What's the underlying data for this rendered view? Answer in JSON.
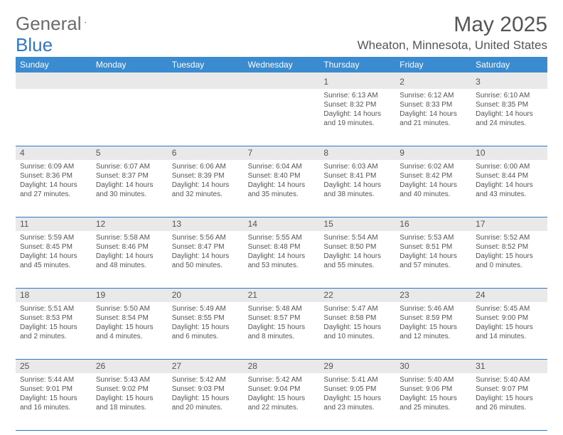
{
  "logo": {
    "text_general": "General",
    "text_blue": "Blue"
  },
  "title": "May 2025",
  "location": "Wheaton, Minnesota, United States",
  "colors": {
    "header_bg": "#3b8bd1",
    "header_text": "#ffffff",
    "daynum_bg": "#e9e9e9",
    "border_line": "#2f78c2",
    "body_text": "#555555"
  },
  "weekdays": [
    "Sunday",
    "Monday",
    "Tuesday",
    "Wednesday",
    "Thursday",
    "Friday",
    "Saturday"
  ],
  "weeks": [
    [
      {
        "n": "",
        "sr": "",
        "ss": "",
        "dl": ""
      },
      {
        "n": "",
        "sr": "",
        "ss": "",
        "dl": ""
      },
      {
        "n": "",
        "sr": "",
        "ss": "",
        "dl": ""
      },
      {
        "n": "",
        "sr": "",
        "ss": "",
        "dl": ""
      },
      {
        "n": "1",
        "sr": "Sunrise: 6:13 AM",
        "ss": "Sunset: 8:32 PM",
        "dl": "Daylight: 14 hours and 19 minutes."
      },
      {
        "n": "2",
        "sr": "Sunrise: 6:12 AM",
        "ss": "Sunset: 8:33 PM",
        "dl": "Daylight: 14 hours and 21 minutes."
      },
      {
        "n": "3",
        "sr": "Sunrise: 6:10 AM",
        "ss": "Sunset: 8:35 PM",
        "dl": "Daylight: 14 hours and 24 minutes."
      }
    ],
    [
      {
        "n": "4",
        "sr": "Sunrise: 6:09 AM",
        "ss": "Sunset: 8:36 PM",
        "dl": "Daylight: 14 hours and 27 minutes."
      },
      {
        "n": "5",
        "sr": "Sunrise: 6:07 AM",
        "ss": "Sunset: 8:37 PM",
        "dl": "Daylight: 14 hours and 30 minutes."
      },
      {
        "n": "6",
        "sr": "Sunrise: 6:06 AM",
        "ss": "Sunset: 8:39 PM",
        "dl": "Daylight: 14 hours and 32 minutes."
      },
      {
        "n": "7",
        "sr": "Sunrise: 6:04 AM",
        "ss": "Sunset: 8:40 PM",
        "dl": "Daylight: 14 hours and 35 minutes."
      },
      {
        "n": "8",
        "sr": "Sunrise: 6:03 AM",
        "ss": "Sunset: 8:41 PM",
        "dl": "Daylight: 14 hours and 38 minutes."
      },
      {
        "n": "9",
        "sr": "Sunrise: 6:02 AM",
        "ss": "Sunset: 8:42 PM",
        "dl": "Daylight: 14 hours and 40 minutes."
      },
      {
        "n": "10",
        "sr": "Sunrise: 6:00 AM",
        "ss": "Sunset: 8:44 PM",
        "dl": "Daylight: 14 hours and 43 minutes."
      }
    ],
    [
      {
        "n": "11",
        "sr": "Sunrise: 5:59 AM",
        "ss": "Sunset: 8:45 PM",
        "dl": "Daylight: 14 hours and 45 minutes."
      },
      {
        "n": "12",
        "sr": "Sunrise: 5:58 AM",
        "ss": "Sunset: 8:46 PM",
        "dl": "Daylight: 14 hours and 48 minutes."
      },
      {
        "n": "13",
        "sr": "Sunrise: 5:56 AM",
        "ss": "Sunset: 8:47 PM",
        "dl": "Daylight: 14 hours and 50 minutes."
      },
      {
        "n": "14",
        "sr": "Sunrise: 5:55 AM",
        "ss": "Sunset: 8:48 PM",
        "dl": "Daylight: 14 hours and 53 minutes."
      },
      {
        "n": "15",
        "sr": "Sunrise: 5:54 AM",
        "ss": "Sunset: 8:50 PM",
        "dl": "Daylight: 14 hours and 55 minutes."
      },
      {
        "n": "16",
        "sr": "Sunrise: 5:53 AM",
        "ss": "Sunset: 8:51 PM",
        "dl": "Daylight: 14 hours and 57 minutes."
      },
      {
        "n": "17",
        "sr": "Sunrise: 5:52 AM",
        "ss": "Sunset: 8:52 PM",
        "dl": "Daylight: 15 hours and 0 minutes."
      }
    ],
    [
      {
        "n": "18",
        "sr": "Sunrise: 5:51 AM",
        "ss": "Sunset: 8:53 PM",
        "dl": "Daylight: 15 hours and 2 minutes."
      },
      {
        "n": "19",
        "sr": "Sunrise: 5:50 AM",
        "ss": "Sunset: 8:54 PM",
        "dl": "Daylight: 15 hours and 4 minutes."
      },
      {
        "n": "20",
        "sr": "Sunrise: 5:49 AM",
        "ss": "Sunset: 8:55 PM",
        "dl": "Daylight: 15 hours and 6 minutes."
      },
      {
        "n": "21",
        "sr": "Sunrise: 5:48 AM",
        "ss": "Sunset: 8:57 PM",
        "dl": "Daylight: 15 hours and 8 minutes."
      },
      {
        "n": "22",
        "sr": "Sunrise: 5:47 AM",
        "ss": "Sunset: 8:58 PM",
        "dl": "Daylight: 15 hours and 10 minutes."
      },
      {
        "n": "23",
        "sr": "Sunrise: 5:46 AM",
        "ss": "Sunset: 8:59 PM",
        "dl": "Daylight: 15 hours and 12 minutes."
      },
      {
        "n": "24",
        "sr": "Sunrise: 5:45 AM",
        "ss": "Sunset: 9:00 PM",
        "dl": "Daylight: 15 hours and 14 minutes."
      }
    ],
    [
      {
        "n": "25",
        "sr": "Sunrise: 5:44 AM",
        "ss": "Sunset: 9:01 PM",
        "dl": "Daylight: 15 hours and 16 minutes."
      },
      {
        "n": "26",
        "sr": "Sunrise: 5:43 AM",
        "ss": "Sunset: 9:02 PM",
        "dl": "Daylight: 15 hours and 18 minutes."
      },
      {
        "n": "27",
        "sr": "Sunrise: 5:42 AM",
        "ss": "Sunset: 9:03 PM",
        "dl": "Daylight: 15 hours and 20 minutes."
      },
      {
        "n": "28",
        "sr": "Sunrise: 5:42 AM",
        "ss": "Sunset: 9:04 PM",
        "dl": "Daylight: 15 hours and 22 minutes."
      },
      {
        "n": "29",
        "sr": "Sunrise: 5:41 AM",
        "ss": "Sunset: 9:05 PM",
        "dl": "Daylight: 15 hours and 23 minutes."
      },
      {
        "n": "30",
        "sr": "Sunrise: 5:40 AM",
        "ss": "Sunset: 9:06 PM",
        "dl": "Daylight: 15 hours and 25 minutes."
      },
      {
        "n": "31",
        "sr": "Sunrise: 5:40 AM",
        "ss": "Sunset: 9:07 PM",
        "dl": "Daylight: 15 hours and 26 minutes."
      }
    ]
  ]
}
